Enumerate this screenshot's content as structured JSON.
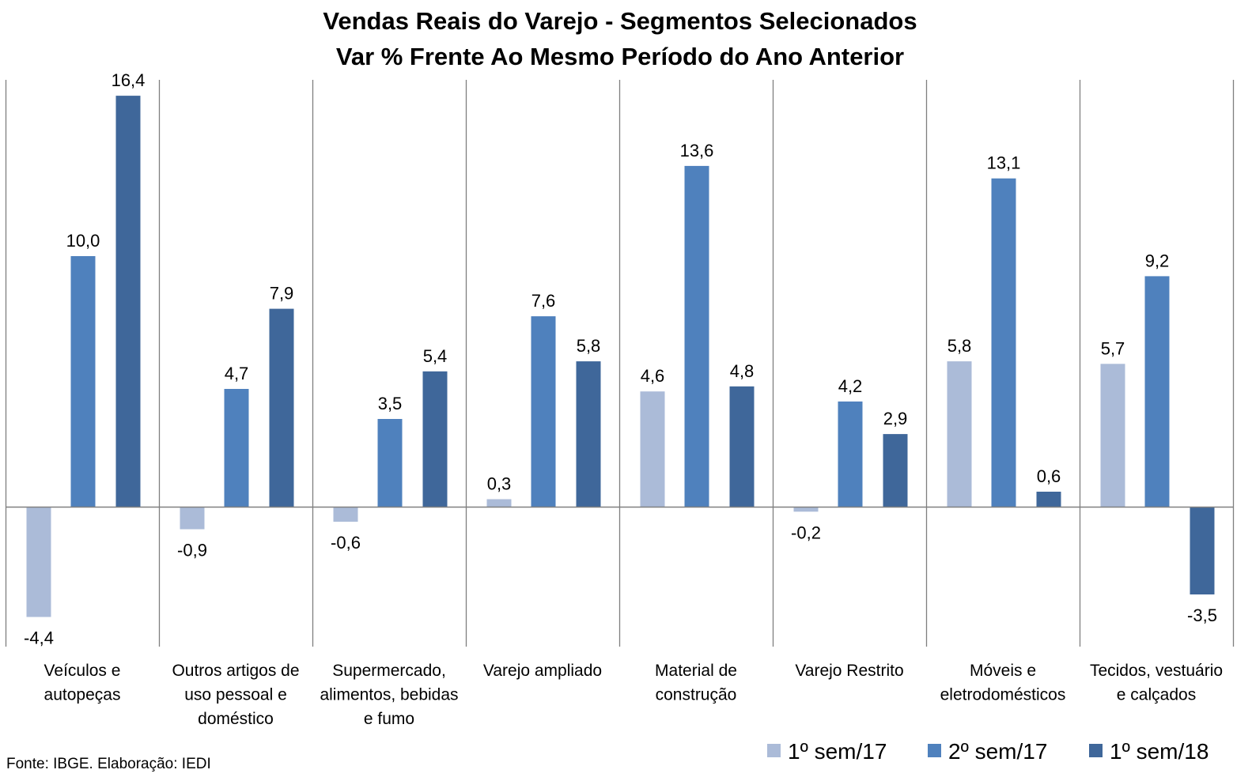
{
  "chart_data": {
    "type": "bar",
    "title": "Vendas Reais do Varejo - Segmentos Selecionados",
    "subtitle": "Var % Frente Ao Mesmo Período do Ano Anterior",
    "categories": [
      "Veículos e autopeças",
      "Outros artigos de uso pessoal e doméstico",
      "Supermercado, alimentos, bebidas e fumo",
      "Varejo ampliado",
      "Material de construção",
      "Varejo Restrito",
      "Móveis e eletrodomésticos",
      "Tecidos, vestuário e calçados"
    ],
    "category_lines": [
      [
        "Veículos e",
        "autopeças"
      ],
      [
        "Outros artigos de",
        "uso pessoal e",
        "doméstico"
      ],
      [
        "Supermercado,",
        "alimentos, bebidas",
        "e fumo"
      ],
      [
        "Varejo ampliado"
      ],
      [
        "Material de",
        "construção"
      ],
      [
        "Varejo Restrito"
      ],
      [
        "Móveis e",
        "eletrodomésticos"
      ],
      [
        "Tecidos, vestuário",
        "e calçados"
      ]
    ],
    "series": [
      {
        "name": "1º sem/17",
        "color": "#abbbd8",
        "values": [
          -4.4,
          -0.9,
          -0.6,
          0.3,
          4.6,
          -0.2,
          5.8,
          5.7
        ],
        "labels": [
          "-4,4",
          "-0,9",
          "-0,6",
          "0,3",
          "4,6",
          "-0,2",
          "5,8",
          "5,7"
        ]
      },
      {
        "name": "2º sem/17",
        "color": "#4f81bd",
        "values": [
          10.0,
          4.7,
          3.5,
          7.6,
          13.6,
          4.2,
          13.1,
          9.2
        ],
        "labels": [
          "10,0",
          "4,7",
          "3,5",
          "7,6",
          "13,6",
          "4,2",
          "13,1",
          "9,2"
        ]
      },
      {
        "name": "1º sem/18",
        "color": "#3f679a",
        "values": [
          16.4,
          7.9,
          5.4,
          5.8,
          4.8,
          2.9,
          0.6,
          -3.5
        ],
        "labels": [
          "16,4",
          "7,9",
          "5,4",
          "5,8",
          "4,8",
          "2,9",
          "0,6",
          "-3,5"
        ]
      }
    ],
    "legend_position": "bottom-right",
    "grid": false,
    "source": "Fonte: IBGE. Elaboração: IEDI"
  }
}
